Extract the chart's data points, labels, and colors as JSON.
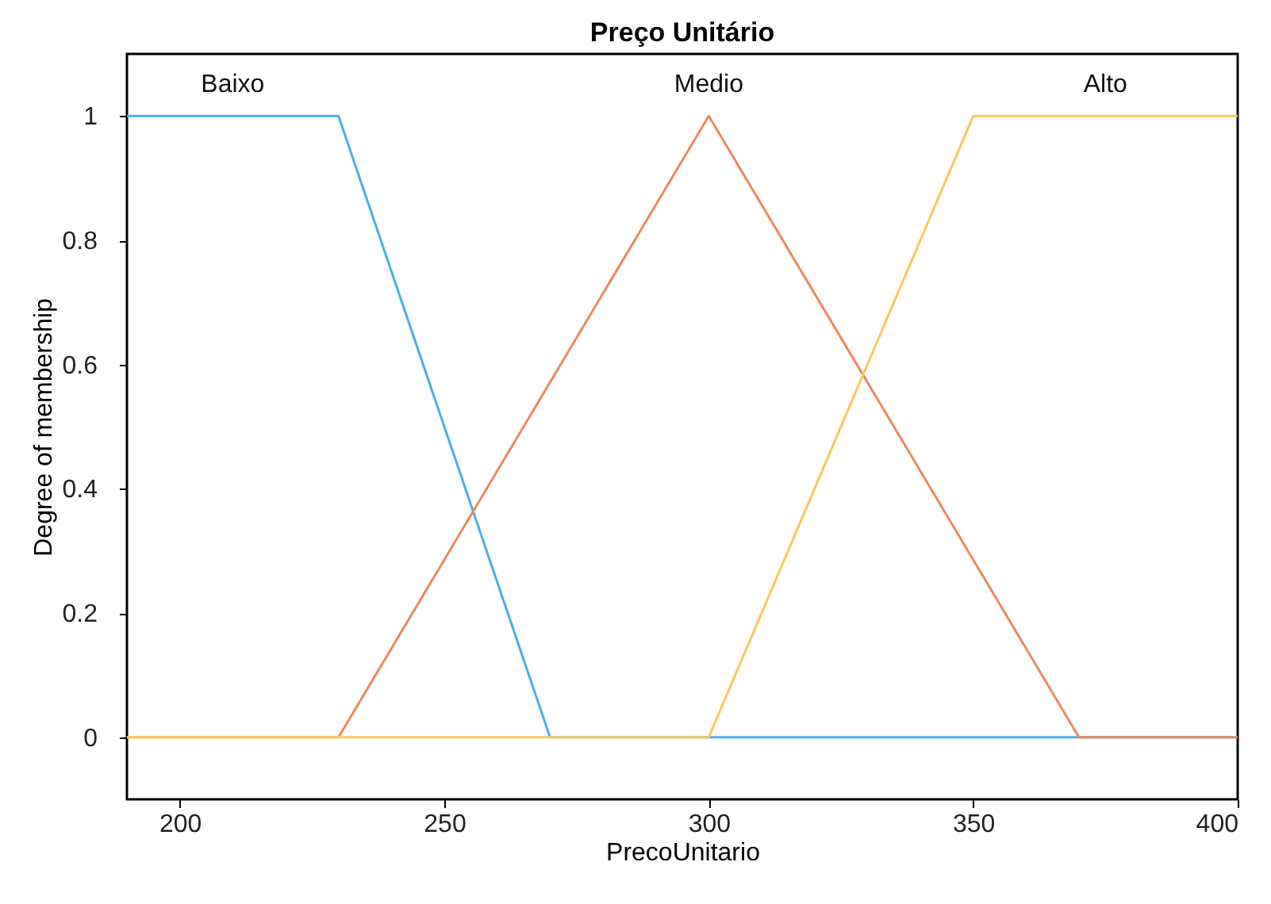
{
  "chart_data": {
    "type": "line",
    "title": "Preço Unitário",
    "xlabel": "PrecoUnitario",
    "ylabel": "Degree of membership",
    "xlim": [
      190,
      400
    ],
    "xticks": [
      200,
      250,
      300,
      350,
      400
    ],
    "ylim": [
      -0.1,
      1.1
    ],
    "yticks": [
      0,
      0.2,
      0.4,
      0.6,
      0.8,
      1
    ],
    "grid": false,
    "legend": false,
    "marker": "none",
    "line_style": "solid",
    "series": [
      {
        "name": "Baixo",
        "color": "#4daee8",
        "x": [
          190,
          230,
          270,
          400
        ],
        "values": [
          1,
          1,
          0,
          0
        ]
      },
      {
        "name": "Medio",
        "color": "#eb8a5e",
        "x": [
          190,
          230,
          300,
          370,
          400
        ],
        "values": [
          0,
          0,
          1,
          0,
          0
        ]
      },
      {
        "name": "Alto",
        "color": "#f6c85f",
        "x": [
          190,
          300,
          350,
          400
        ],
        "values": [
          0,
          0,
          1,
          1
        ]
      }
    ]
  }
}
